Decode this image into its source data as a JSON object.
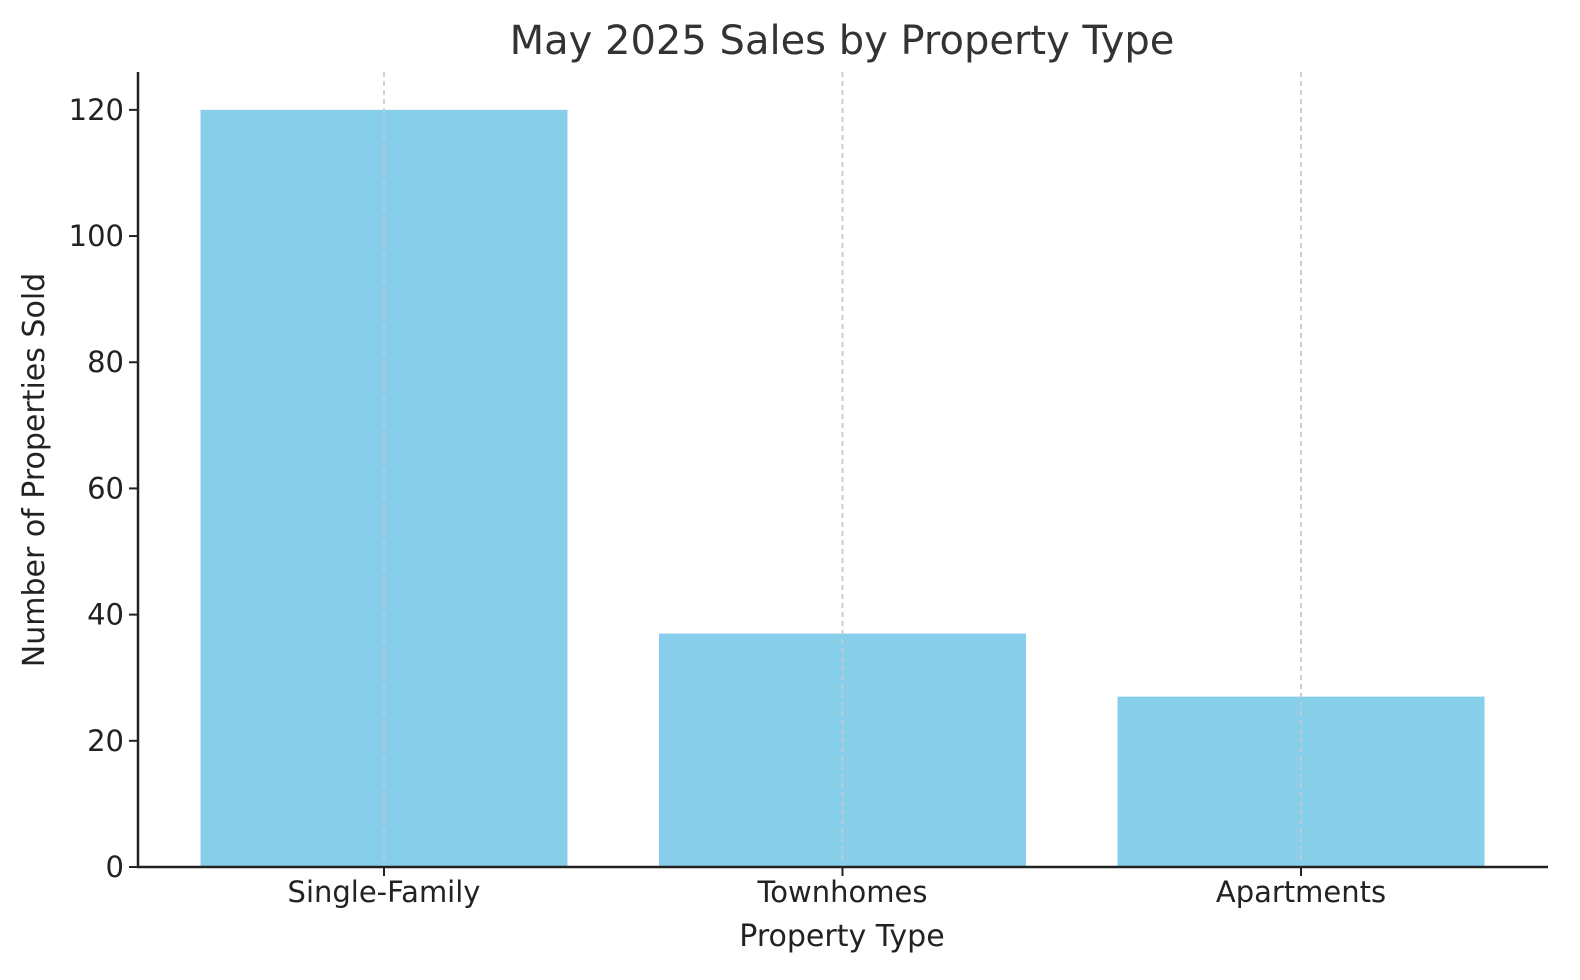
{
  "chart_data": {
    "type": "bar",
    "title": "May 2025 Sales by Property Type",
    "xlabel": "Property Type",
    "ylabel": "Number of Properties Sold",
    "categories": [
      "Single-Family",
      "Townhomes",
      "Apartments"
    ],
    "values": [
      120,
      37,
      27
    ],
    "ylim": [
      0,
      126
    ],
    "yticks": [
      0,
      20,
      40,
      60,
      80,
      100,
      120
    ],
    "bar_color": "#87CEEB",
    "axis_color": "#222222",
    "grid": "x-dashed",
    "legend": "none"
  }
}
